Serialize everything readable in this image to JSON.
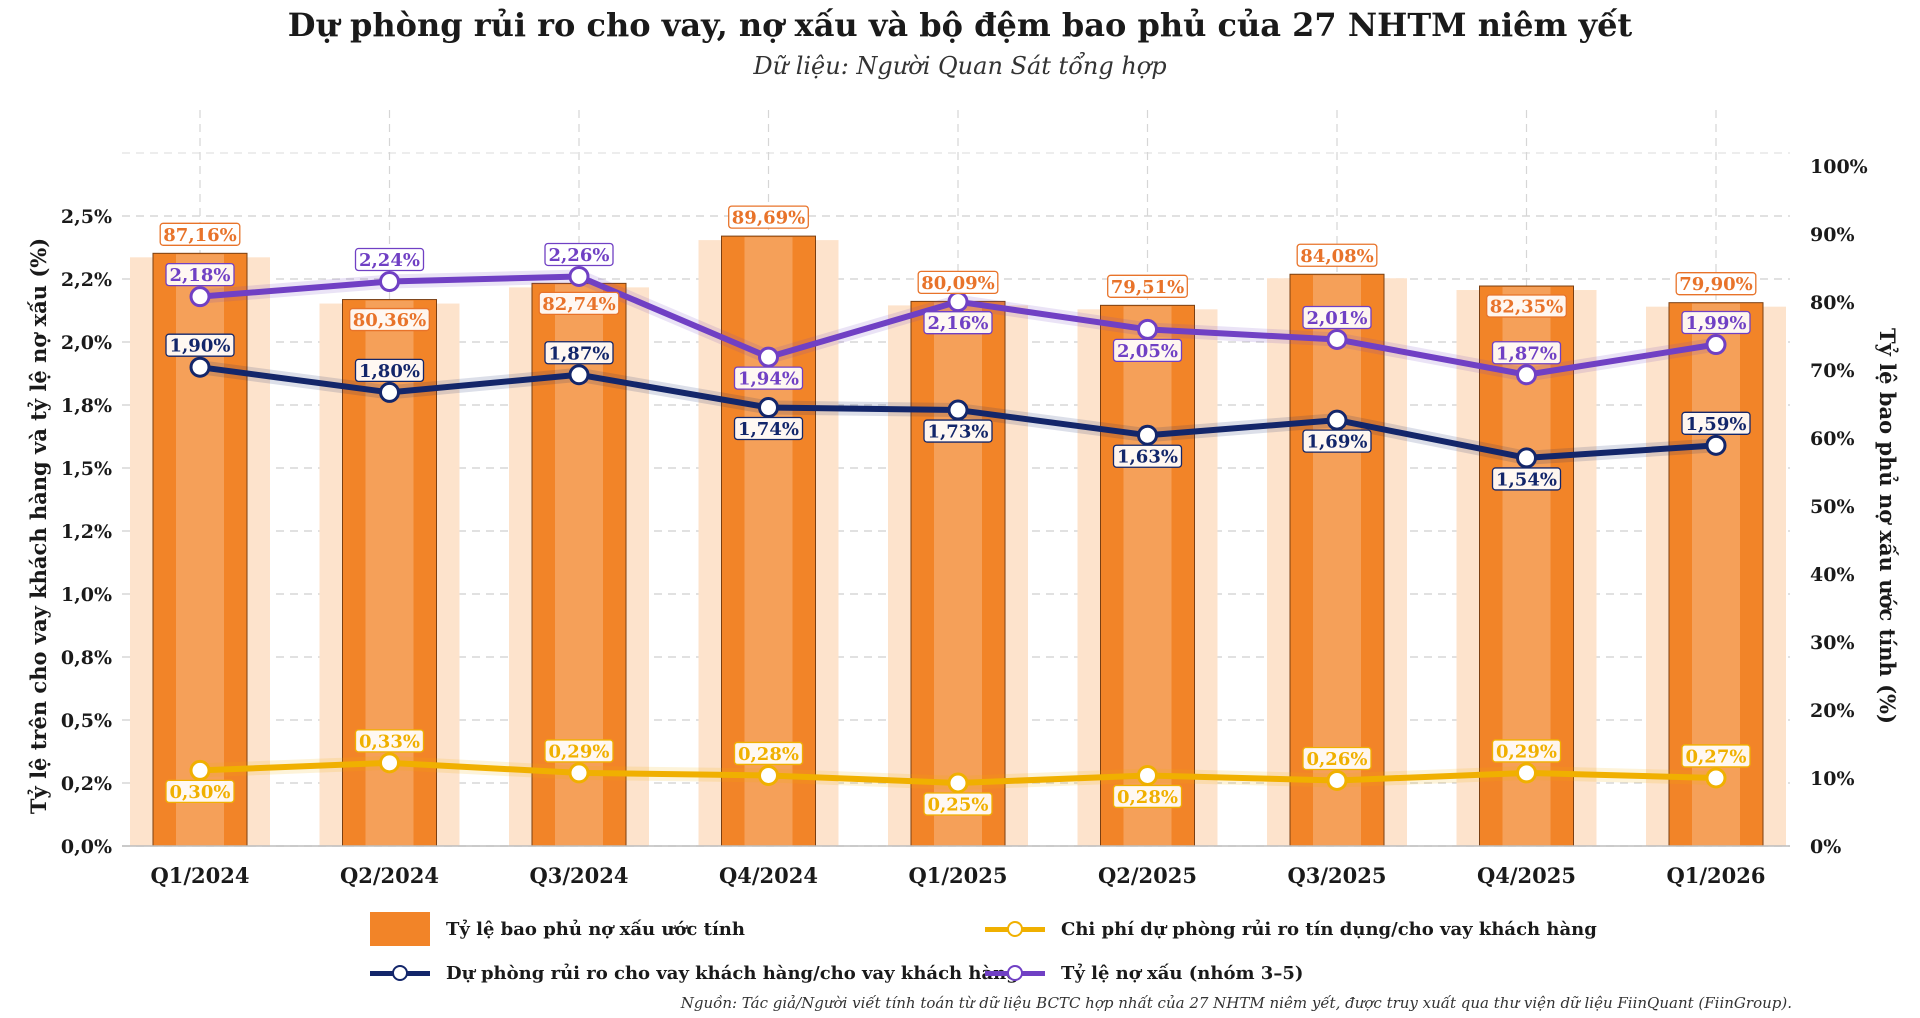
{
  "title": "Dự phòng rủi ro cho vay, nợ xấu và bộ đệm bao phủ của 27 NHTM niêm yết",
  "subtitle": "Dữ liệu: Người Quan Sát tổng hợp",
  "source": "Nguồn: Tác giả/Người viết tính toán từ dữ liệu BCTC hợp nhất của 27 NHTM niêm yết, được truy xuất qua thư viện dữ liệu FiinQuant (FiinGroup).",
  "colors": {
    "bar": "#F28428",
    "bar_halo": "#FDE3CC",
    "bar_inner": "#F6A561",
    "npl": "#7040C4",
    "provision": "#13266A",
    "cost": "#F0B000",
    "coverage_label": "#E8732A",
    "grid": "#cfcfcf"
  },
  "legend": {
    "coverage": "Tỷ lệ bao phủ nợ xấu ước tính",
    "cost": "Chi phí dự phòng rủi ro tín dụng/cho vay khách hàng",
    "provision": "Dự phòng rủi ro cho vay khách hàng/cho vay khách hàng",
    "npl": "Tỷ lệ nợ xấu (nhóm 3–5)"
  },
  "chart_data": {
    "type": "bar",
    "title": "Dự phòng rủi ro cho vay, nợ xấu và bộ đệm bao phủ của 27 NHTM niêm yết",
    "categories": [
      "Q1/2024",
      "Q2/2024",
      "Q3/2024",
      "Q4/2024",
      "Q1/2025",
      "Q2/2025",
      "Q3/2025",
      "Q4/2025",
      "Q1/2026"
    ],
    "ylabel": "Tỷ lệ trên cho vay khách hàng và tỷ lệ nợ xấu (%)",
    "y2label": "Tỷ lệ bao phủ nợ xấu ước tính (%)",
    "ylim": [
      0,
      2.5
    ],
    "y2lim": [
      0,
      100
    ],
    "y_ticks": [
      "0,0%",
      "0,2%",
      "0,5%",
      "0,8%",
      "1,0%",
      "1,2%",
      "1,5%",
      "1,8%",
      "2,0%",
      "2,2%",
      "2,5%"
    ],
    "y2_ticks": [
      "0%",
      "10%",
      "20%",
      "30%",
      "40%",
      "50%",
      "60%",
      "70%",
      "80%",
      "90%",
      "100%"
    ],
    "grid": true,
    "legend_position": "bottom",
    "series": [
      {
        "name": "Tỷ lệ bao phủ nợ xấu ước tính",
        "type": "bar",
        "axis": "right",
        "values": [
          87.16,
          80.36,
          82.74,
          89.69,
          80.09,
          79.51,
          84.08,
          82.35,
          79.9
        ],
        "labels": [
          "87,16%",
          "80,36%",
          "82,74%",
          "89,69%",
          "80,09%",
          "79,51%",
          "84,08%",
          "82,35%",
          "79,90%"
        ],
        "label_pos": [
          "above",
          "below",
          "below",
          "above",
          "above",
          "above",
          "above",
          "below",
          "above"
        ]
      },
      {
        "name": "Tỷ lệ nợ xấu (nhóm 3–5)",
        "type": "line",
        "axis": "left",
        "values": [
          2.18,
          2.24,
          2.26,
          1.94,
          2.16,
          2.05,
          2.01,
          1.87,
          1.99
        ],
        "labels": [
          "2,18%",
          "2,24%",
          "2,26%",
          "1,94%",
          "2,16%",
          "2,05%",
          "2,01%",
          "1,87%",
          "1,99%"
        ],
        "label_pos": [
          "above",
          "above",
          "above",
          "below",
          "below",
          "below",
          "above",
          "above",
          "above"
        ]
      },
      {
        "name": "Dự phòng rủi ro cho vay khách hàng/cho vay khách hàng",
        "type": "line",
        "axis": "left",
        "values": [
          1.9,
          1.8,
          1.87,
          1.74,
          1.73,
          1.63,
          1.69,
          1.54,
          1.59
        ],
        "labels": [
          "1,90%",
          "1,80%",
          "1,87%",
          "1,74%",
          "1,73%",
          "1,63%",
          "1,69%",
          "1,54%",
          "1,59%"
        ],
        "label_pos": [
          "above",
          "above",
          "above",
          "below",
          "below",
          "below",
          "below",
          "below",
          "above"
        ]
      },
      {
        "name": "Chi phí dự phòng rủi ro tín dụng/cho vay khách hàng",
        "type": "line",
        "axis": "left",
        "values": [
          0.3,
          0.33,
          0.29,
          0.28,
          0.25,
          0.28,
          0.26,
          0.29,
          0.27
        ],
        "labels": [
          "0,30%",
          "0,33%",
          "0,29%",
          "0,28%",
          "0,25%",
          "0,28%",
          "0,26%",
          "0,29%",
          "0,27%"
        ],
        "label_pos": [
          "below",
          "above",
          "above",
          "above",
          "below",
          "below",
          "above",
          "above",
          "above"
        ]
      }
    ]
  }
}
